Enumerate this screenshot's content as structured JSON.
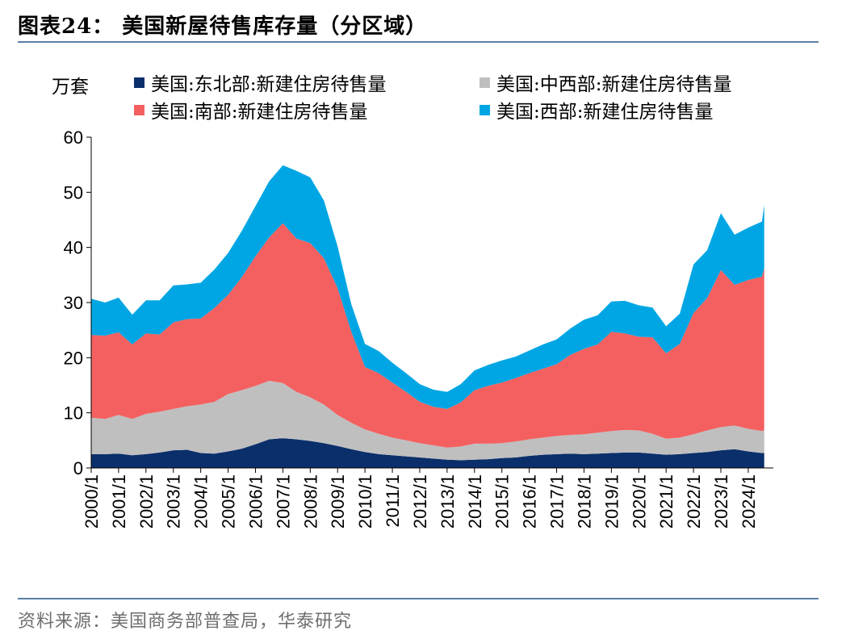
{
  "header": {
    "title": "图表24：  美国新屋待售库存量（分区域）"
  },
  "footer": {
    "source": "资料来源：美国商务部普查局，华泰研究"
  },
  "chart_data": {
    "type": "area",
    "stacked": true,
    "unit_label": "万套",
    "ylim": [
      0,
      60
    ],
    "yticks": [
      0,
      10,
      20,
      30,
      40,
      50,
      60
    ],
    "xlim": [
      "2000-01",
      "2024-12"
    ],
    "xticks": [
      "2000/1",
      "2001/1",
      "2002/1",
      "2003/1",
      "2004/1",
      "2005/1",
      "2006/1",
      "2007/1",
      "2008/1",
      "2009/1",
      "2010/1",
      "2011/1",
      "2012/1",
      "2013/1",
      "2014/1",
      "2015/1",
      "2016/1",
      "2017/1",
      "2018/1",
      "2019/1",
      "2020/1",
      "2021/1",
      "2022/1",
      "2023/1",
      "2024/1"
    ],
    "x": [
      "2000-01",
      "2000-07",
      "2001-01",
      "2001-07",
      "2002-01",
      "2002-07",
      "2003-01",
      "2003-07",
      "2004-01",
      "2004-07",
      "2005-01",
      "2005-07",
      "2006-01",
      "2006-07",
      "2007-01",
      "2007-07",
      "2008-01",
      "2008-07",
      "2009-01",
      "2009-07",
      "2010-01",
      "2010-07",
      "2011-01",
      "2011-07",
      "2012-01",
      "2012-07",
      "2013-01",
      "2013-07",
      "2014-01",
      "2014-07",
      "2015-01",
      "2015-07",
      "2016-01",
      "2016-07",
      "2017-01",
      "2017-07",
      "2018-01",
      "2018-07",
      "2019-01",
      "2019-07",
      "2020-01",
      "2020-07",
      "2021-01",
      "2021-07",
      "2022-01",
      "2022-07",
      "2023-01",
      "2023-07",
      "2024-01",
      "2024-07",
      "2024-08"
    ],
    "series": [
      {
        "name": "美国:东北部:新建住房待售量",
        "color": "#0b2f6b",
        "values": [
          2.5,
          2.5,
          2.6,
          2.3,
          2.5,
          2.8,
          3.2,
          3.3,
          2.7,
          2.6,
          3.0,
          3.5,
          4.3,
          5.2,
          5.4,
          5.2,
          4.9,
          4.5,
          4.0,
          3.4,
          2.9,
          2.5,
          2.3,
          2.1,
          1.9,
          1.7,
          1.5,
          1.4,
          1.5,
          1.6,
          1.8,
          1.9,
          2.2,
          2.4,
          2.5,
          2.6,
          2.5,
          2.6,
          2.7,
          2.8,
          2.8,
          2.6,
          2.4,
          2.5,
          2.7,
          2.9,
          3.2,
          3.4,
          3.0,
          2.7,
          2.7
        ]
      },
      {
        "name": "美国:中西部:新建住房待售量",
        "color": "#bfbfbf",
        "values": [
          6.6,
          6.4,
          7.0,
          6.6,
          7.3,
          7.4,
          7.5,
          7.9,
          8.8,
          9.4,
          10.4,
          10.6,
          10.6,
          10.6,
          10.0,
          8.6,
          7.9,
          7.0,
          5.6,
          4.8,
          4.1,
          3.7,
          3.2,
          2.9,
          2.6,
          2.4,
          2.2,
          2.5,
          2.9,
          2.8,
          2.7,
          2.9,
          3.0,
          3.1,
          3.3,
          3.4,
          3.6,
          3.8,
          4.0,
          4.1,
          4.0,
          3.6,
          2.9,
          3.0,
          3.4,
          3.9,
          4.2,
          4.3,
          4.1,
          4.0,
          4.1
        ]
      },
      {
        "name": "美国:南部:新建住房待售量",
        "color": "#f46060",
        "values": [
          15.0,
          15.1,
          15.0,
          13.5,
          14.6,
          14.0,
          15.7,
          15.8,
          15.6,
          17.0,
          18.0,
          20.5,
          23.5,
          26.0,
          29.0,
          27.8,
          28.0,
          26.5,
          23.0,
          16.5,
          11.3,
          11.0,
          10.0,
          8.8,
          7.5,
          7.0,
          7.0,
          8.0,
          9.7,
          10.5,
          11.0,
          11.5,
          12.0,
          12.5,
          13.0,
          14.5,
          15.5,
          16.0,
          18.0,
          17.5,
          17.0,
          17.5,
          15.5,
          17.0,
          22.0,
          24.0,
          28.5,
          25.5,
          27.0,
          28.0,
          29.5
        ]
      },
      {
        "name": "美国:西部:新建住房待售量",
        "color": "#00a6e4",
        "values": [
          6.6,
          6.0,
          6.3,
          5.4,
          6.0,
          6.2,
          6.7,
          6.3,
          6.5,
          7.0,
          7.6,
          8.4,
          9.1,
          10.2,
          10.5,
          12.3,
          11.9,
          10.5,
          7.6,
          5.0,
          4.2,
          4.0,
          3.6,
          3.4,
          3.2,
          3.1,
          3.1,
          3.3,
          3.6,
          3.8,
          4.0,
          3.9,
          4.1,
          4.4,
          4.5,
          4.8,
          5.3,
          5.3,
          5.5,
          5.9,
          5.7,
          5.4,
          4.9,
          5.5,
          8.8,
          8.7,
          10.3,
          9.1,
          9.5,
          10.0,
          11.4
        ]
      }
    ]
  }
}
